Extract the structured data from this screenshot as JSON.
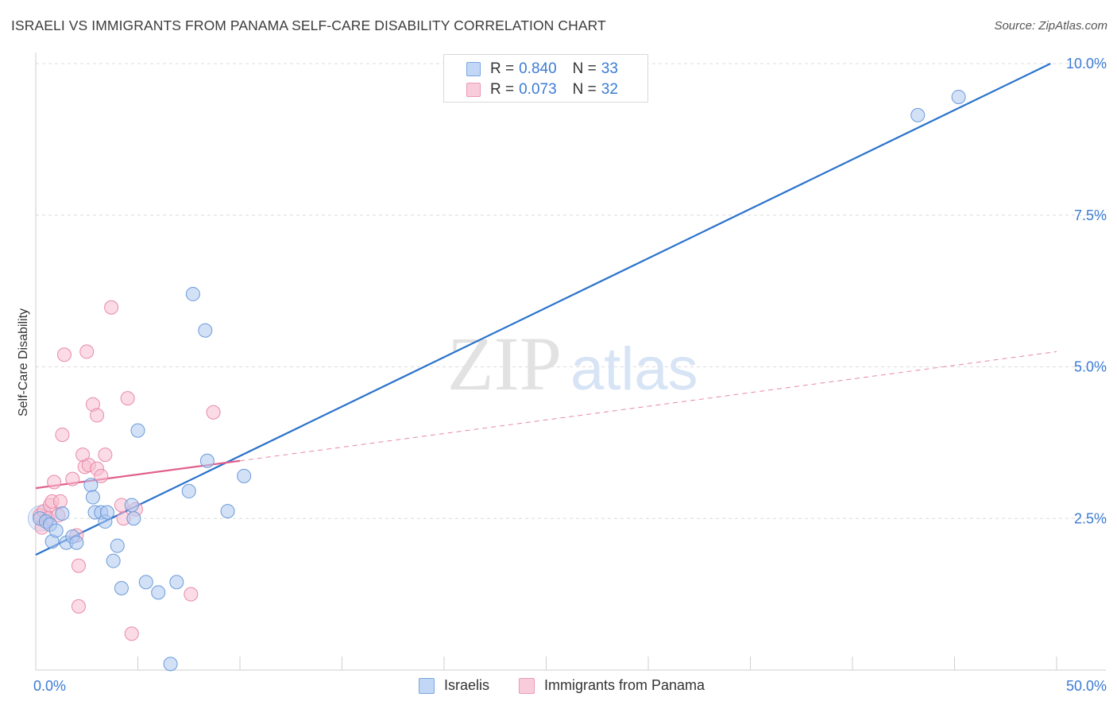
{
  "title": "ISRAELI VS IMMIGRANTS FROM PANAMA SELF-CARE DISABILITY CORRELATION CHART",
  "source": "Source: ZipAtlas.com",
  "watermark": {
    "zip": "ZIP",
    "atlas": "atlas"
  },
  "colors": {
    "blue_fill": "#aec9f0",
    "blue_stroke": "#6a9ad8",
    "blue_line": "#2a72cc",
    "pink_fill": "#f7bdd0",
    "pink_stroke": "#e98aa9",
    "pink_line": "#e0608c",
    "tick_label": "#3a7bd5",
    "grid": "#dcdcdc"
  },
  "legend_top": {
    "rows": [
      {
        "r_label": "R =",
        "r_value": "0.840",
        "n_label": "N =",
        "n_value": "33"
      },
      {
        "r_label": "R =",
        "r_value": "0.073",
        "n_label": "N =",
        "n_value": "32"
      }
    ]
  },
  "chart_data": {
    "type": "scatter",
    "title": "ISRAELI VS IMMIGRANTS FROM PANAMA SELF-CARE DISABILITY CORRELATION CHART",
    "xlabel": "",
    "ylabel": "Self-Care Disability",
    "xlim": [
      0,
      50
    ],
    "ylim": [
      0,
      10
    ],
    "x_tick_labels": [
      "0.0%",
      "50.0%"
    ],
    "y_ticks": [
      2.5,
      5.0,
      7.5,
      10.0
    ],
    "y_tick_labels": [
      "2.5%",
      "5.0%",
      "7.5%",
      "10.0%"
    ],
    "grid": true,
    "legend_placement": "bottom-center",
    "series": [
      {
        "name": "Israelis",
        "color": "#6a9ad8",
        "points": [
          [
            0.2,
            2.5
          ],
          [
            0.5,
            2.45
          ],
          [
            0.7,
            2.4
          ],
          [
            0.8,
            2.12
          ],
          [
            1.0,
            2.3
          ],
          [
            1.3,
            2.58
          ],
          [
            1.5,
            2.1
          ],
          [
            1.8,
            2.2
          ],
          [
            2.0,
            2.1
          ],
          [
            2.7,
            3.05
          ],
          [
            2.8,
            2.85
          ],
          [
            2.9,
            2.6
          ],
          [
            3.2,
            2.6
          ],
          [
            3.4,
            2.45
          ],
          [
            3.5,
            2.6
          ],
          [
            3.8,
            1.8
          ],
          [
            4.0,
            2.05
          ],
          [
            4.2,
            1.35
          ],
          [
            4.7,
            2.72
          ],
          [
            4.8,
            2.5
          ],
          [
            5.0,
            3.95
          ],
          [
            5.4,
            1.45
          ],
          [
            6.0,
            1.28
          ],
          [
            6.6,
            0.1
          ],
          [
            6.9,
            1.45
          ],
          [
            7.5,
            2.95
          ],
          [
            7.7,
            6.2
          ],
          [
            8.3,
            5.6
          ],
          [
            8.4,
            3.45
          ],
          [
            9.4,
            2.62
          ],
          [
            10.2,
            3.2
          ],
          [
            43.2,
            9.15
          ],
          [
            45.2,
            9.45
          ]
        ],
        "trend": {
          "x": [
            0,
            49.7
          ],
          "y": [
            1.9,
            10.0
          ]
        }
      },
      {
        "name": "Immigrants from Panama",
        "color": "#e98aa9",
        "points": [
          [
            0.2,
            2.55
          ],
          [
            0.4,
            2.62
          ],
          [
            0.6,
            2.5
          ],
          [
            0.7,
            2.72
          ],
          [
            0.8,
            2.78
          ],
          [
            0.9,
            3.1
          ],
          [
            1.1,
            2.55
          ],
          [
            1.2,
            2.78
          ],
          [
            1.3,
            3.88
          ],
          [
            1.4,
            5.2
          ],
          [
            1.8,
            3.15
          ],
          [
            2.0,
            2.22
          ],
          [
            2.1,
            1.72
          ],
          [
            2.1,
            1.05
          ],
          [
            2.3,
            3.55
          ],
          [
            2.4,
            3.35
          ],
          [
            2.5,
            5.25
          ],
          [
            2.6,
            3.38
          ],
          [
            2.8,
            4.38
          ],
          [
            3.0,
            3.32
          ],
          [
            3.0,
            4.2
          ],
          [
            3.2,
            3.2
          ],
          [
            3.4,
            3.55
          ],
          [
            3.7,
            5.98
          ],
          [
            4.2,
            2.72
          ],
          [
            4.3,
            2.5
          ],
          [
            4.5,
            4.48
          ],
          [
            4.7,
            0.6
          ],
          [
            4.9,
            2.65
          ],
          [
            7.6,
            1.25
          ],
          [
            8.7,
            4.25
          ],
          [
            0.3,
            2.35
          ]
        ],
        "trend_solid": {
          "x": [
            0,
            10.0
          ],
          "y": [
            3.0,
            3.45
          ]
        },
        "trend_dashed": {
          "x": [
            10.0,
            50.0
          ],
          "y": [
            3.45,
            5.25
          ]
        }
      }
    ]
  }
}
